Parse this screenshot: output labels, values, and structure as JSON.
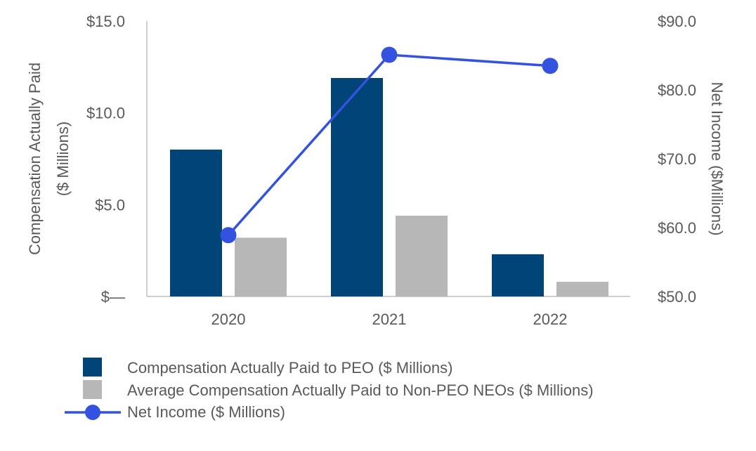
{
  "chart_data": {
    "type": "bar+line",
    "categories": [
      "2020",
      "2021",
      "2022"
    ],
    "series": [
      {
        "name": "Compensation Actually Paid to PEO ($ Millions)",
        "kind": "bar",
        "axis": "left",
        "color": "#004478",
        "values": [
          8.0,
          11.9,
          2.3
        ]
      },
      {
        "name": "Average Compensation Actually Paid to Non-PEO NEOs ($ Millions)",
        "kind": "bar",
        "axis": "left",
        "color": "#b7b7b7",
        "values": [
          3.2,
          4.4,
          0.8
        ]
      },
      {
        "name": "Net Income ($ Millions)",
        "kind": "line",
        "axis": "right",
        "color": "#3452e0",
        "values": [
          58.9,
          85.1,
          83.5
        ]
      }
    ],
    "left_axis": {
      "label_line1": "Compensation Actually Paid",
      "label_line2": "($ Millions)",
      "ylim": [
        0,
        15
      ],
      "ticks": [
        0,
        5,
        10,
        15
      ],
      "tick_labels": [
        "$—",
        "$5.0",
        "$10.0",
        "$15.0"
      ]
    },
    "right_axis": {
      "label": "Net Income ($Millions)",
      "ylim": [
        50,
        90
      ],
      "ticks": [
        50,
        60,
        70,
        80,
        90
      ],
      "tick_labels": [
        "$50.0",
        "$60.0",
        "$70.0",
        "$80.0",
        "$90.0"
      ]
    },
    "grid": false,
    "legend_position": "bottom-left"
  }
}
